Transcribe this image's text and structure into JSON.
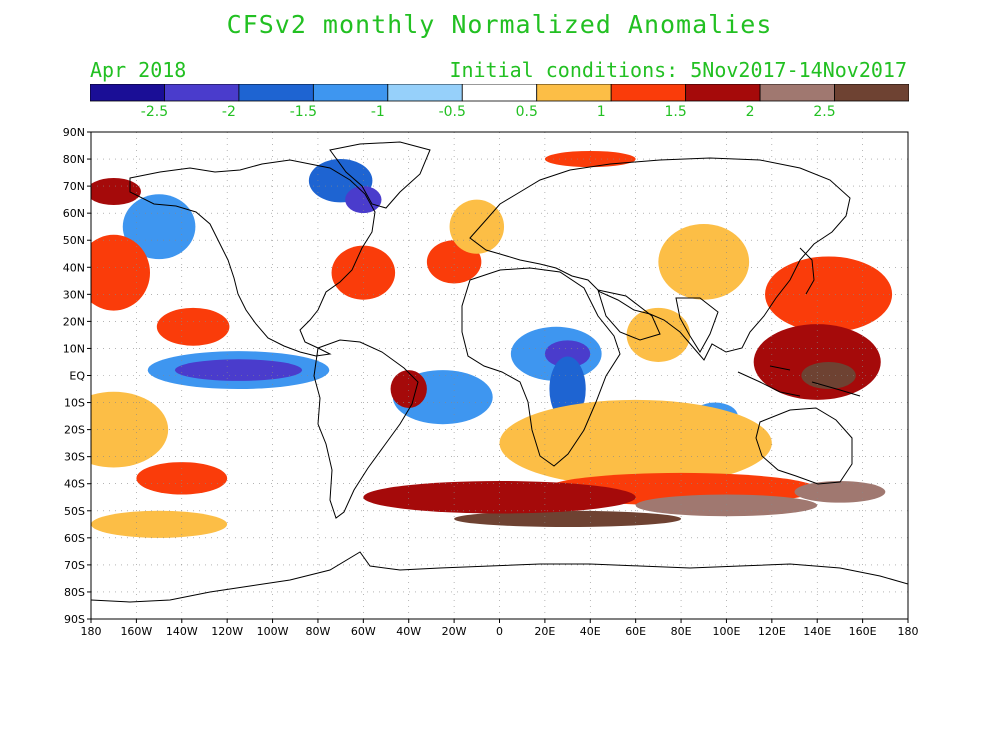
{
  "title": "CFSv2 monthly Normalized Anomalies",
  "valid_month": "Apr 2018",
  "initial_conditions": "Initial conditions: 5Nov2017-14Nov2017",
  "colors": {
    "title_text": "#22c022",
    "bins": [
      "#1a0e96",
      "#4a3ccc",
      "#1e64d2",
      "#3e96f0",
      "#96d0fa",
      "#ffffff",
      "#fcbe46",
      "#fa3c0a",
      "#a50a0a",
      "#a07870",
      "#6e4232"
    ]
  },
  "colorbar": {
    "labels": [
      "-2.5",
      "-2",
      "-1.5",
      "-1",
      "-0.5",
      "0.5",
      "1",
      "1.5",
      "2",
      "2.5"
    ]
  },
  "axes": {
    "lon_labels": [
      "180",
      "160W",
      "140W",
      "120W",
      "100W",
      "80W",
      "60W",
      "40W",
      "20W",
      "0",
      "20E",
      "40E",
      "60E",
      "80E",
      "100E",
      "120E",
      "140E",
      "160E",
      "180"
    ],
    "lat_labels": [
      "90N",
      "80N",
      "70N",
      "60N",
      "50N",
      "40N",
      "30N",
      "20N",
      "10N",
      "EQ",
      "10S",
      "20S",
      "30S",
      "40S",
      "50S",
      "60S",
      "70S",
      "80S",
      "90S"
    ]
  },
  "map": {
    "variable": "normalized anomaly",
    "features": [
      {
        "region": "Equatorial east Pacific",
        "anomaly": -2.2
      },
      {
        "region": "North-east Pacific",
        "anomaly": -1.2
      },
      {
        "region": "Northern Canada / Greenland",
        "anomaly": -1.8
      },
      {
        "region": "Central Africa / Sahel",
        "anomaly": -1.6
      },
      {
        "region": "Tropical south Atlantic",
        "anomaly": -1.0
      },
      {
        "region": "Southern Ocean",
        "anomaly": 2.6
      },
      {
        "region": "Maritime Continent / west Pacific warm pool",
        "anomaly": 2.0
      },
      {
        "region": "North-west Pacific",
        "anomaly": 1.5
      },
      {
        "region": "North-east Brazil",
        "anomaly": 1.8
      },
      {
        "region": "North Atlantic",
        "anomaly": 1.2
      },
      {
        "region": "Arctic north of Siberia",
        "anomaly": 1.5
      },
      {
        "region": "Indian Ocean",
        "anomaly": 0.8
      }
    ]
  }
}
